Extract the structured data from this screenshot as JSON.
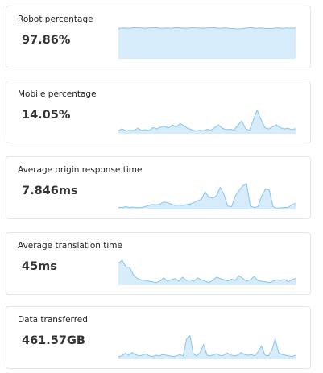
{
  "colors": {
    "area_fill": "#d7ecfa",
    "line_stroke": "#89c4ea",
    "card_border": "#e3e6ea"
  },
  "metrics": [
    {
      "title": "Robot percentage",
      "value": "97.86%",
      "series": [
        0.9,
        0.91,
        0.9,
        0.91,
        0.92,
        0.91,
        0.9,
        0.91,
        0.92,
        0.91,
        0.9,
        0.91,
        0.9,
        0.92,
        0.91,
        0.9,
        0.91,
        0.92,
        0.91,
        0.9,
        0.91,
        0.92,
        0.91,
        0.9,
        0.91,
        0.9,
        0.89,
        0.88,
        0.89,
        0.91,
        0.92,
        0.9,
        0.91,
        0.9,
        0.89,
        0.9,
        0.91,
        0.9,
        0.91,
        0.9,
        0.91
      ]
    },
    {
      "title": "Mobile percentage",
      "value": "14.05%",
      "series": [
        0.1,
        0.14,
        0.08,
        0.1,
        0.09,
        0.16,
        0.1,
        0.12,
        0.09,
        0.18,
        0.14,
        0.2,
        0.22,
        0.17,
        0.26,
        0.2,
        0.3,
        0.24,
        0.16,
        0.12,
        0.08,
        0.1,
        0.09,
        0.13,
        0.11,
        0.18,
        0.26,
        0.16,
        0.12,
        0.13,
        0.11,
        0.25,
        0.38,
        0.15,
        0.1,
        0.4,
        0.7,
        0.42,
        0.18,
        0.14,
        0.2,
        0.26,
        0.18,
        0.14,
        0.16,
        0.12,
        0.15
      ]
    },
    {
      "title": "Average origin response time",
      "value": "7.846ms",
      "series": [
        0.06,
        0.06,
        0.08,
        0.06,
        0.07,
        0.05,
        0.06,
        0.08,
        0.12,
        0.15,
        0.13,
        0.16,
        0.22,
        0.2,
        0.16,
        0.12,
        0.13,
        0.12,
        0.14,
        0.16,
        0.2,
        0.26,
        0.3,
        0.52,
        0.36,
        0.34,
        0.4,
        0.66,
        0.44,
        0.1,
        0.08,
        0.4,
        0.56,
        0.7,
        0.76,
        0.1,
        0.06,
        0.08,
        0.4,
        0.6,
        0.58,
        0.08,
        0.04,
        0.05,
        0.06,
        0.06,
        0.14,
        0.18
      ]
    },
    {
      "title": "Average translation time",
      "value": "45ms",
      "series": [
        0.64,
        0.74,
        0.54,
        0.52,
        0.3,
        0.2,
        0.16,
        0.14,
        0.12,
        0.1,
        0.08,
        0.12,
        0.22,
        0.12,
        0.16,
        0.2,
        0.12,
        0.24,
        0.14,
        0.16,
        0.12,
        0.22,
        0.16,
        0.12,
        0.08,
        0.14,
        0.24,
        0.2,
        0.16,
        0.12,
        0.18,
        0.14,
        0.28,
        0.2,
        0.12,
        0.16,
        0.26,
        0.14,
        0.12,
        0.1,
        0.08,
        0.12,
        0.16,
        0.14,
        0.18,
        0.1,
        0.16,
        0.2
      ]
    },
    {
      "title": "Data transferred",
      "value": "461.57GB",
      "series": [
        0.08,
        0.1,
        0.18,
        0.12,
        0.2,
        0.14,
        0.1,
        0.12,
        0.16,
        0.1,
        0.08,
        0.12,
        0.1,
        0.14,
        0.12,
        0.1,
        0.08,
        0.1,
        0.14,
        0.1,
        0.6,
        0.7,
        0.16,
        0.1,
        0.2,
        0.44,
        0.12,
        0.1,
        0.14,
        0.16,
        0.1,
        0.12,
        0.18,
        0.12,
        0.1,
        0.12,
        0.2,
        0.14,
        0.12,
        0.14,
        0.1,
        0.22,
        0.4,
        0.12,
        0.1,
        0.26,
        0.6,
        0.2,
        0.14,
        0.12,
        0.1,
        0.08,
        0.12
      ]
    }
  ]
}
